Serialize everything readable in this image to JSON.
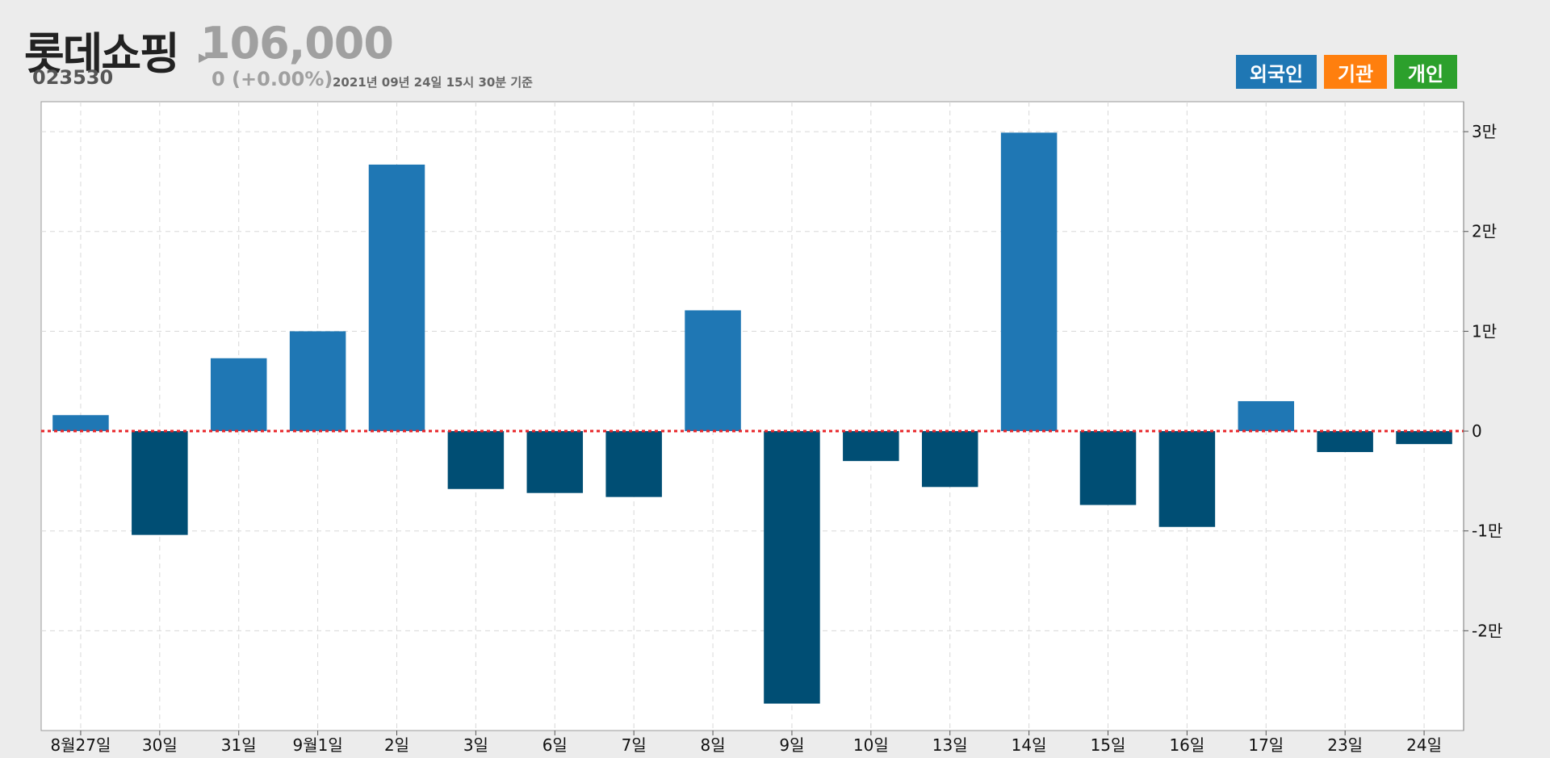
{
  "stock": {
    "name": "롯데쇼핑",
    "code": "023530",
    "price": "106,000",
    "change": "0 (+0.00%)",
    "as_of": "2021년 09년 24일 15시 30분 기준"
  },
  "buttons": [
    {
      "label": "외국인",
      "color": "#1f77b4"
    },
    {
      "label": "기관",
      "color": "#ff7f0e"
    },
    {
      "label": "개인",
      "color": "#2ca02c"
    }
  ],
  "colors": {
    "positive": "#1f77b4",
    "negative": "#004e74",
    "zero_line": "#e8262a",
    "grid": "#d8d8d8"
  },
  "chart_data": {
    "type": "bar",
    "categories": [
      "8월27일",
      "30일",
      "31일",
      "9월1일",
      "2일",
      "3일",
      "6일",
      "7일",
      "8일",
      "9일",
      "10일",
      "13일",
      "14일",
      "15일",
      "16일",
      "17일",
      "23일",
      "24일"
    ],
    "values": [
      1600,
      -10400,
      7300,
      10000,
      26700,
      -5800,
      -6200,
      -6600,
      12100,
      -27300,
      -3000,
      -5600,
      29900,
      -7400,
      -9600,
      3000,
      -2100,
      -1300
    ],
    "ylim": [
      -30000,
      33000
    ],
    "yticks": [
      {
        "value": 30000,
        "label": "3만"
      },
      {
        "value": 20000,
        "label": "2만"
      },
      {
        "value": 10000,
        "label": "1만"
      },
      {
        "value": 0,
        "label": "0"
      },
      {
        "value": -10000,
        "label": "-1만"
      },
      {
        "value": -20000,
        "label": "-2만"
      }
    ],
    "grid": true,
    "y_axis_position": "right"
  }
}
